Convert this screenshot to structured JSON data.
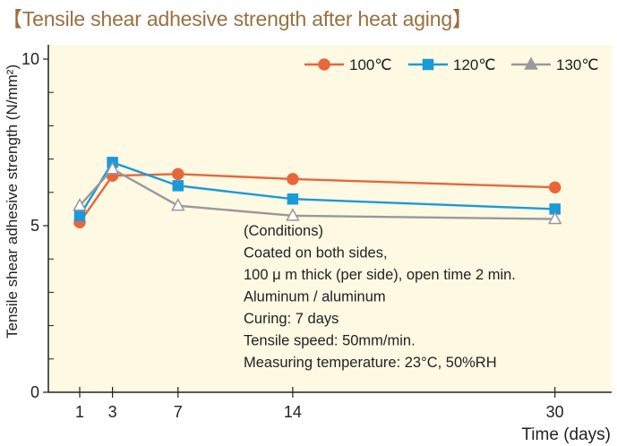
{
  "title": "【Tensile shear adhesive strength after heat aging】",
  "chart_data": {
    "type": "line",
    "title": "【Tensile shear adhesive strength after heat aging】",
    "xlabel": "Time (days)",
    "ylabel": "Tensile shear adhesive strength  (N/mm²)",
    "x_ticks": [
      1,
      3,
      7,
      14,
      30
    ],
    "y_tick_labels": [
      0,
      5,
      10
    ],
    "y_minor_ticks": [
      1,
      2,
      3,
      4,
      6,
      7,
      8,
      9
    ],
    "ylim": [
      0,
      10
    ],
    "grid": false,
    "legend_position": "top-right",
    "series": [
      {
        "name": "100℃",
        "marker": "circle",
        "color": "#e8663a",
        "x": [
          1,
          3,
          7,
          14,
          30
        ],
        "y": [
          5.1,
          6.5,
          6.55,
          6.4,
          6.15
        ]
      },
      {
        "name": "120℃",
        "marker": "square",
        "color": "#1a9ad9",
        "x": [
          1,
          3,
          7,
          14,
          30
        ],
        "y": [
          5.3,
          6.9,
          6.2,
          5.8,
          5.5
        ]
      },
      {
        "name": "130℃",
        "marker": "triangle",
        "color": "#999999",
        "x": [
          1,
          3,
          7,
          14,
          30
        ],
        "y": [
          5.6,
          6.7,
          5.6,
          5.3,
          5.2
        ]
      }
    ],
    "annotation": [
      "(Conditions)",
      "Coated on both sides,",
      "100 μ m thick (per side), open time 2 min.",
      "Aluminum / aluminum",
      "Curing: 7 days",
      "Tensile speed: 50mm/min.",
      "Measuring temperature: 23°C, 50%RH"
    ]
  },
  "colors": {
    "plot_background": "#fdf9e3",
    "axis": "#222222"
  }
}
